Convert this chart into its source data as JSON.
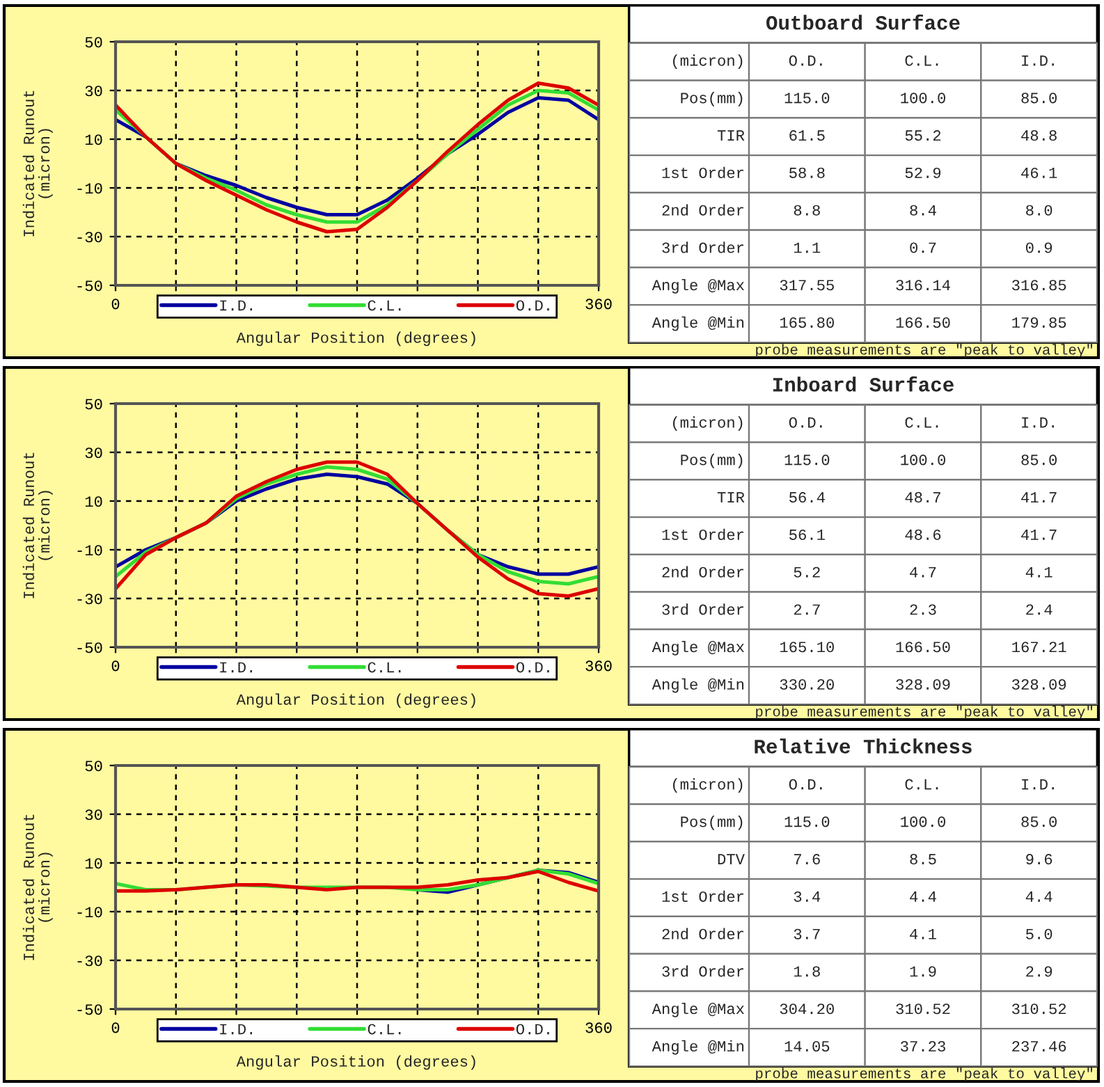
{
  "chart_data": [
    {
      "type": "line",
      "xlabel": "Angular Position (degrees)",
      "ylabel": "Indicated Runout\n(micron)",
      "x": [
        0,
        22.5,
        45,
        67.5,
        90,
        112.5,
        135,
        157.5,
        180,
        202.5,
        225,
        247.5,
        270,
        292.5,
        315,
        337.5,
        360
      ],
      "series": [
        {
          "name": "I.D.",
          "color": "#0000a0",
          "values": [
            18,
            11,
            0,
            -5,
            -9,
            -14,
            -18,
            -21,
            -21,
            -15,
            -6,
            4,
            12,
            21,
            27,
            26,
            18
          ]
        },
        {
          "name": "C.L.",
          "color": "#33dd33",
          "values": [
            22,
            11,
            0,
            -6,
            -11,
            -17,
            -21,
            -24,
            -24,
            -17,
            -7,
            4,
            14,
            24,
            30,
            29,
            22
          ]
        },
        {
          "name": "O.D.",
          "color": "#dd0000",
          "values": [
            24,
            11,
            0,
            -7,
            -13,
            -19,
            -24,
            -28,
            -27,
            -18,
            -7,
            5,
            16,
            26,
            33,
            31,
            24
          ]
        }
      ],
      "xlim": [
        0,
        360
      ],
      "xticks": [
        0,
        {
          "value": 45,
          "label": null
        },
        {
          "value": 90,
          "label": null
        },
        {
          "value": 135,
          "label": null
        },
        {
          "value": 180,
          "label": null
        },
        {
          "value": 225,
          "label": null
        },
        {
          "value": 270,
          "label": null
        },
        {
          "value": 315,
          "label": null
        },
        360
      ],
      "ylim": [
        -50,
        50
      ],
      "yticks": [
        -50,
        -30,
        -10,
        10,
        30,
        50
      ],
      "grid": true,
      "legend": "bottom",
      "line_style": "solid"
    },
    {
      "type": "other",
      "title": "Outboard Surface",
      "annotations": [
        "(micron)",
        "O.D.",
        "C.L.",
        "I.D.",
        "Pos(mm)",
        "115.0",
        "100.0",
        "85.0",
        "TIR",
        "61.5",
        "55.2",
        "48.8",
        "1st Order",
        "58.8",
        "52.9",
        "46.1",
        "2nd Order",
        "8.8",
        "8.4",
        "8.0",
        "3rd Order",
        "1.1",
        "0.7",
        "0.9",
        "Angle @Max",
        "317.55",
        "316.14",
        "316.85",
        "Angle @Min",
        "165.80",
        "166.50",
        "179.85",
        "probe measurements are \"peak to valley\""
      ]
    },
    {
      "type": "line",
      "xlabel": "Angular Position (degrees)",
      "ylabel": "Indicated Runout\n(micron)",
      "x": [
        0,
        22.5,
        45,
        67.5,
        90,
        112.5,
        135,
        157.5,
        180,
        202.5,
        225,
        247.5,
        270,
        292.5,
        315,
        337.5,
        360
      ],
      "series": [
        {
          "name": "I.D.",
          "color": "#0000a0",
          "values": [
            -17,
            -10,
            -5,
            1,
            10,
            15,
            19,
            21,
            20,
            17,
            9,
            -2,
            -12,
            -17,
            -20,
            -20,
            -17
          ]
        },
        {
          "name": "C.L.",
          "color": "#33dd33",
          "values": [
            -21,
            -11,
            -5,
            1,
            11,
            17,
            21,
            24,
            23,
            19,
            9,
            -2,
            -12,
            -19,
            -23,
            -24,
            -21
          ]
        },
        {
          "name": "O.D.",
          "color": "#dd0000",
          "values": [
            -26,
            -12,
            -5,
            1,
            12,
            18,
            23,
            26,
            26,
            21,
            9,
            -2,
            -13,
            -22,
            -28,
            -29,
            -26
          ]
        }
      ],
      "xlim": [
        0,
        360
      ],
      "xticks": [
        0,
        {
          "value": 45,
          "label": null
        },
        {
          "value": 90,
          "label": null
        },
        {
          "value": 135,
          "label": null
        },
        {
          "value": 180,
          "label": null
        },
        {
          "value": 225,
          "label": null
        },
        {
          "value": 270,
          "label": null
        },
        {
          "value": 315,
          "label": null
        },
        360
      ],
      "ylim": [
        -50,
        50
      ],
      "yticks": [
        -50,
        -30,
        -10,
        10,
        30,
        50
      ],
      "grid": true,
      "legend": "bottom",
      "line_style": "solid"
    },
    {
      "type": "other",
      "title": "Inboard Surface",
      "annotations": [
        "(micron)",
        "O.D.",
        "C.L.",
        "I.D.",
        "Pos(mm)",
        "115.0",
        "100.0",
        "85.0",
        "TIR",
        "56.4",
        "48.7",
        "41.7",
        "1st Order",
        "56.1",
        "48.6",
        "41.7",
        "2nd Order",
        "5.2",
        "4.7",
        "4.1",
        "3rd Order",
        "2.7",
        "2.3",
        "2.4",
        "Angle @Max",
        "165.10",
        "166.50",
        "167.21",
        "Angle @Min",
        "330.20",
        "328.09",
        "328.09",
        "probe measurements are \"peak to valley\""
      ]
    },
    {
      "type": "line",
      "xlabel": "Angular Position (degrees)",
      "ylabel": "Indicated Runout\n(micron)",
      "x": [
        0,
        22.5,
        45,
        67.5,
        90,
        112.5,
        135,
        157.5,
        180,
        202.5,
        225,
        247.5,
        270,
        292.5,
        315,
        337.5,
        360
      ],
      "series": [
        {
          "name": "I.D.",
          "color": "#0000a0",
          "values": [
            null,
            null,
            null,
            null,
            null,
            null,
            null,
            null,
            null,
            null,
            -1,
            -2,
            1,
            null,
            7,
            6,
            2
          ]
        },
        {
          "name": "C.L.",
          "color": "#33dd33",
          "values": [
            1.5,
            -1,
            -1,
            0,
            1,
            null,
            0,
            null,
            0,
            0,
            -1,
            -1,
            1,
            4,
            7,
            5.5,
            1.5
          ]
        },
        {
          "name": "O.D.",
          "color": "#dd0000",
          "values": [
            -1.5,
            -1.5,
            -1,
            0,
            1,
            1,
            0,
            -1,
            0,
            0,
            0,
            1,
            3,
            4,
            6.5,
            2,
            -1.5
          ]
        }
      ],
      "xlim": [
        0,
        360
      ],
      "xticks": [
        0,
        {
          "value": 45,
          "label": null
        },
        {
          "value": 90,
          "label": null
        },
        {
          "value": 135,
          "label": null
        },
        {
          "value": 180,
          "label": null
        },
        {
          "value": 225,
          "label": null
        },
        {
          "value": 270,
          "label": null
        },
        {
          "value": 315,
          "label": null
        },
        360
      ],
      "ylim": [
        -50,
        50
      ],
      "yticks": [
        -50,
        -30,
        -10,
        10,
        30,
        50
      ],
      "grid": true,
      "legend": "bottom",
      "line_style": "solid"
    },
    {
      "type": "other",
      "title": "Relative Thickness",
      "annotations": [
        "(micron)",
        "O.D.",
        "C.L.",
        "I.D.",
        "Pos(mm)",
        "115.0",
        "100.0",
        "85.0",
        "DTV",
        "7.6",
        "8.5",
        "9.6",
        "1st Order",
        "3.4",
        "4.4",
        "4.4",
        "2nd Order",
        "3.7",
        "4.1",
        "5.0",
        "3rd Order",
        "1.8",
        "1.9",
        "2.9",
        "Angle @Max",
        "304.20",
        "310.52",
        "310.52",
        "Angle @Min",
        "14.05",
        "37.23",
        "237.46",
        "probe measurements are \"peak to valley\""
      ]
    }
  ]
}
